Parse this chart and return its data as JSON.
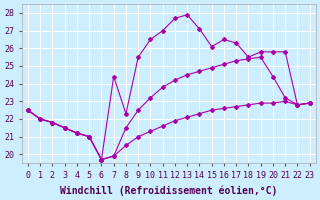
{
  "xlabel": "Windchill (Refroidissement éolien,°C)",
  "xlim": [
    -0.5,
    23.5
  ],
  "ylim": [
    19.5,
    28.5
  ],
  "xticks": [
    0,
    1,
    2,
    3,
    4,
    5,
    6,
    7,
    8,
    9,
    10,
    11,
    12,
    13,
    14,
    15,
    16,
    17,
    18,
    19,
    20,
    21,
    22,
    23
  ],
  "yticks": [
    20,
    21,
    22,
    23,
    24,
    25,
    26,
    27,
    28
  ],
  "bg_color": "#cceeff",
  "grid_color": "#ffffff",
  "line_color": "#aa00aa",
  "line1_x": [
    0,
    1,
    2,
    3,
    4,
    5,
    6,
    7,
    8,
    9,
    10,
    11,
    12,
    13,
    14,
    15,
    16,
    17,
    18,
    19,
    20,
    21,
    22,
    23
  ],
  "line1_y": [
    22.5,
    22.0,
    21.8,
    21.5,
    21.2,
    21.0,
    19.7,
    19.9,
    20.5,
    21.0,
    21.3,
    21.6,
    21.9,
    22.1,
    22.3,
    22.5,
    22.6,
    22.7,
    22.8,
    22.9,
    22.9,
    23.0,
    22.8,
    22.9
  ],
  "line2_x": [
    0,
    1,
    2,
    3,
    4,
    5,
    6,
    7,
    8,
    9,
    10,
    11,
    12,
    13,
    14,
    15,
    16,
    17,
    18,
    19,
    20,
    21,
    22,
    23
  ],
  "line2_y": [
    22.5,
    22.0,
    21.8,
    21.5,
    21.2,
    21.0,
    19.7,
    19.9,
    21.5,
    22.5,
    23.2,
    23.8,
    24.2,
    24.5,
    24.7,
    24.9,
    25.1,
    25.3,
    25.4,
    25.5,
    24.4,
    23.2,
    22.8,
    22.9
  ],
  "line3_x": [
    0,
    1,
    2,
    3,
    4,
    5,
    6,
    7,
    8,
    9,
    10,
    11,
    12,
    13,
    14,
    15,
    16,
    17,
    18,
    19,
    20,
    21,
    22,
    23
  ],
  "line3_y": [
    22.5,
    22.0,
    21.8,
    21.5,
    21.2,
    21.0,
    19.7,
    24.4,
    22.3,
    25.5,
    26.5,
    27.0,
    27.7,
    27.9,
    27.1,
    26.1,
    26.5,
    26.3,
    25.5,
    25.8,
    25.8,
    25.8,
    22.8,
    22.9
  ],
  "fontsize_tick": 6,
  "fontsize_xlabel": 7
}
